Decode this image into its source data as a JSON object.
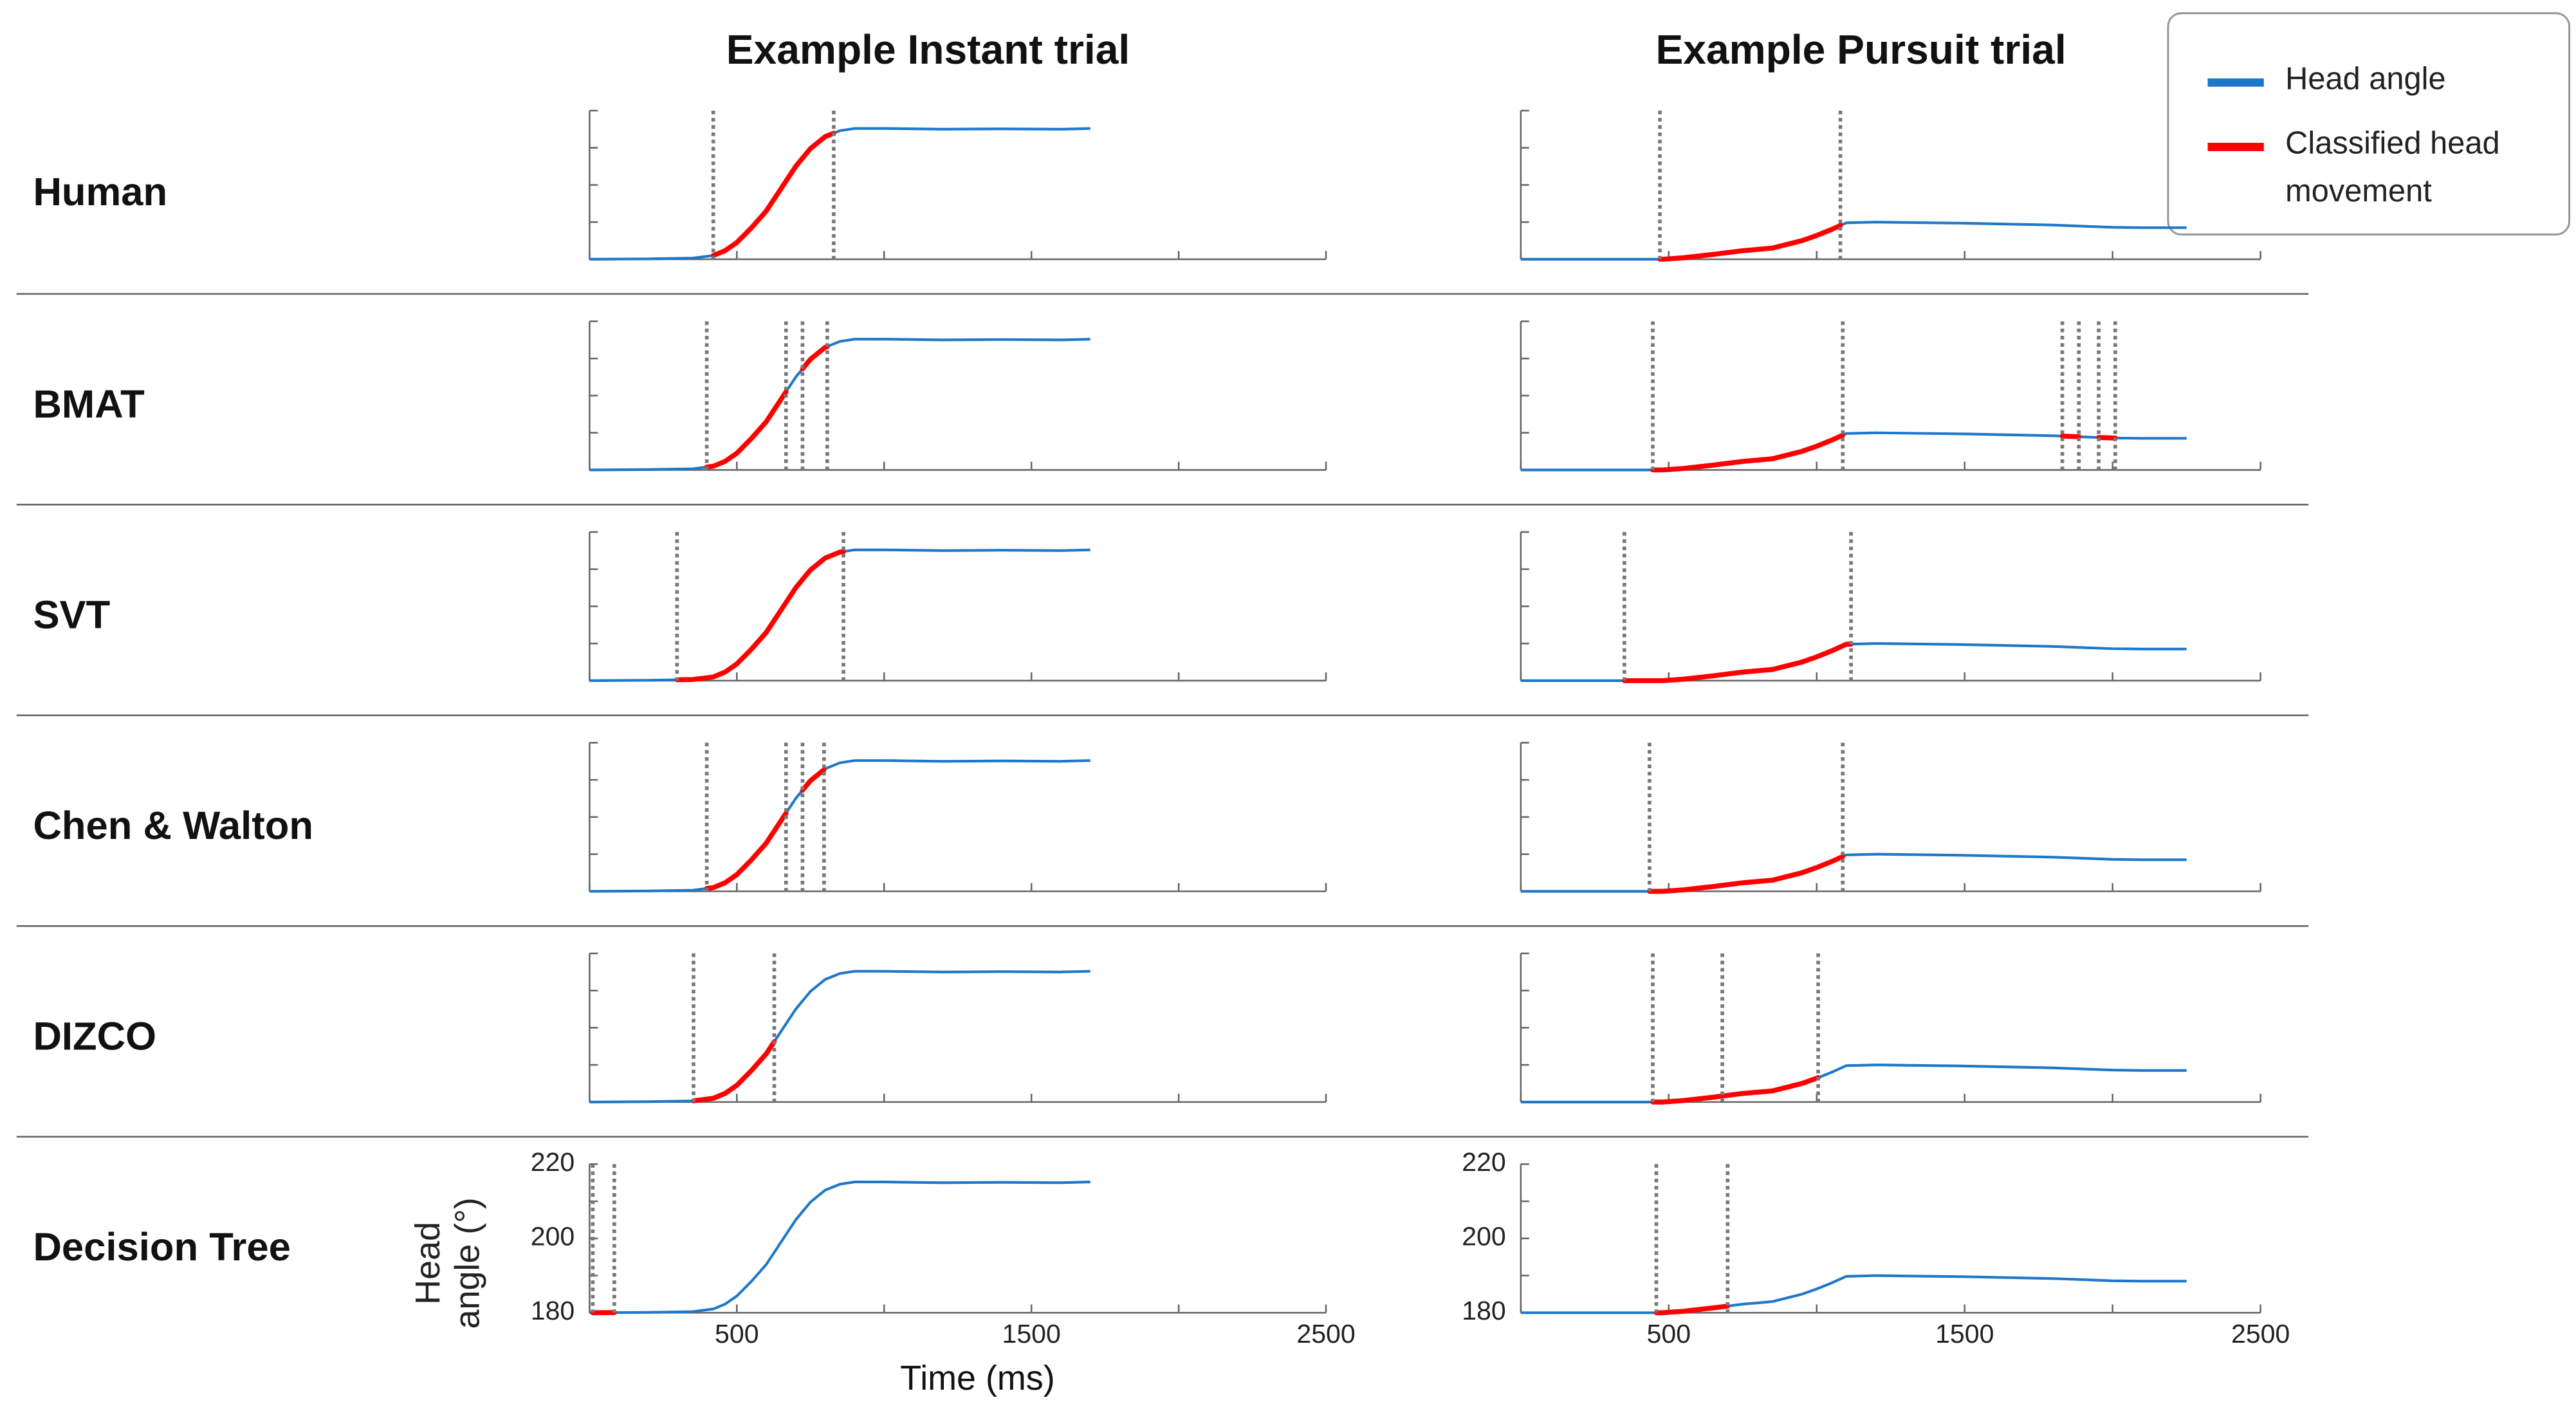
{
  "chart_data": {
    "type": "line",
    "column_titles": [
      "Example Instant trial",
      "Example Pursuit trial"
    ],
    "xlabel": "Time (ms)",
    "ylabel": "Head angle (°)",
    "xlim": [
      0,
      2500
    ],
    "xticks": [
      500,
      1500,
      2500
    ],
    "xminorticks": [
      0,
      1000,
      2000
    ],
    "ylim": [
      180,
      220
    ],
    "yticks": [
      180,
      200,
      220
    ],
    "yminorticks": [
      190,
      210
    ],
    "series": [
      {
        "name": "Head angle",
        "color": "#1f77c9"
      },
      {
        "name": "Classified head movement",
        "color": "#ff0000"
      }
    ],
    "trials": [
      {
        "x": [
          0,
          200,
          350,
          420,
          460,
          500,
          550,
          600,
          650,
          700,
          750,
          800,
          850,
          900,
          1000,
          1200,
          1400,
          1600,
          1700
        ],
        "head_angle": [
          180,
          180.1,
          180.3,
          181,
          182.3,
          184.5,
          188.5,
          193,
          199,
          205,
          209.8,
          213,
          214.6,
          215.2,
          215.2,
          215,
          215.1,
          215,
          215.2
        ]
      },
      {
        "x": [
          0,
          300,
          480,
          550,
          650,
          750,
          850,
          950,
          1000,
          1050,
          1100,
          1200,
          1500,
          1800,
          2000,
          2100,
          2250
        ],
        "head_angle": [
          180,
          180,
          180,
          180.4,
          181.3,
          182.3,
          183,
          185,
          186.4,
          188,
          189.8,
          190,
          189.7,
          189.2,
          188.6,
          188.5,
          188.5
        ]
      }
    ],
    "rows": [
      {
        "label": "Human",
        "panels": [
          {
            "events": [
              420,
              829
            ],
            "segments": [
              [
                420,
                829
              ]
            ]
          },
          {
            "events": [
              470,
              1080
            ],
            "segments": [
              [
                470,
                1080
              ]
            ]
          }
        ]
      },
      {
        "label": "BMAT",
        "panels": [
          {
            "events": [
              398,
              667,
              723,
              807
            ],
            "segments": [
              [
                398,
                667
              ],
              [
                723,
                807
              ]
            ]
          },
          {
            "events": [
              446,
              1088,
              1830,
              1886,
              1953,
              2009
            ],
            "segments": [
              [
                446,
                1088
              ],
              [
                1830,
                1886
              ],
              [
                1953,
                2009
              ]
            ]
          }
        ]
      },
      {
        "label": "SVT",
        "panels": [
          {
            "events": [
              297,
              862
            ],
            "segments": [
              [
                297,
                862
              ]
            ]
          },
          {
            "events": [
              350,
              1116
            ],
            "segments": [
              [
                350,
                1116
              ]
            ]
          }
        ]
      },
      {
        "label": "Chen & Walton",
        "panels": [
          {
            "events": [
              398,
              667,
              723,
              796
            ],
            "segments": [
              [
                398,
                667
              ],
              [
                723,
                796
              ]
            ]
          },
          {
            "events": [
              435,
              1088
            ],
            "segments": [
              [
                435,
                1088
              ]
            ]
          }
        ]
      },
      {
        "label": "DIZCO",
        "panels": [
          {
            "events": [
              353,
              627
            ],
            "segments": [
              [
                353,
                627
              ]
            ]
          },
          {
            "events": [
              446,
              681,
              1005
            ],
            "segments": [
              [
                446,
                681
              ],
              [
                681,
                1005
              ]
            ]
          }
        ]
      },
      {
        "label": "Decision Tree",
        "panels": [
          {
            "events": [
              11,
              84
            ],
            "segments": [
              [
                11,
                84
              ]
            ]
          },
          {
            "events": [
              458,
              699
            ],
            "segments": [
              [
                458,
                699
              ]
            ]
          }
        ]
      }
    ]
  }
}
